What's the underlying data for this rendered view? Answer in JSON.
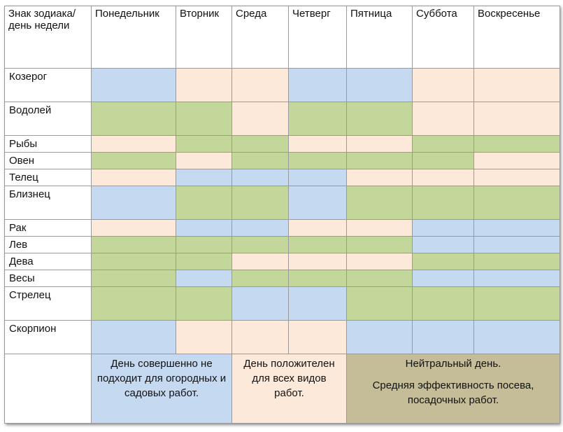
{
  "table": {
    "header": [
      "Знак зодиака/день недели",
      "Понедельник",
      "Вторник",
      "Среда",
      "Четверг",
      "Пятница",
      "Суббота",
      "Воскресенье"
    ],
    "rows": [
      {
        "sign": "Козерог",
        "cells": [
          "#c5d9f1",
          "#fde9d9",
          "#fde9d9",
          "#c5d9f1",
          "#c5d9f1",
          "#fde9d9",
          "#fde9d9"
        ]
      },
      {
        "sign": "Водолей",
        "cells": [
          "#c4d79b",
          "#c4d79b",
          "#fde9d9",
          "#c4d79b",
          "#c4d79b",
          "#fde9d9",
          "#fde9d9"
        ]
      },
      {
        "sign": "Рыбы",
        "cells": [
          "#fde9d9",
          "#c4d79b",
          "#c4d79b",
          "#fde9d9",
          "#fde9d9",
          "#c4d79b",
          "#c4d79b"
        ]
      },
      {
        "sign": "Овен",
        "cells": [
          "#c4d79b",
          "#fde9d9",
          "#c4d79b",
          "#c4d79b",
          "#c4d79b",
          "#c4d79b",
          "#fde9d9"
        ]
      },
      {
        "sign": "Телец",
        "cells": [
          "#fde9d9",
          "#c5d9f1",
          "#c5d9f1",
          "#c5d9f1",
          "#fde9d9",
          "#fde9d9",
          "#fde9d9"
        ]
      },
      {
        "sign": "Близнец",
        "cells": [
          "#c5d9f1",
          "#c4d79b",
          "#c4d79b",
          "#c5d9f1",
          "#c4d79b",
          "#c4d79b",
          "#c4d79b"
        ]
      },
      {
        "sign": "Рак",
        "cells": [
          "#fde9d9",
          "#c5d9f1",
          "#c5d9f1",
          "#fde9d9",
          "#fde9d9",
          "#c5d9f1",
          "#c5d9f1"
        ]
      },
      {
        "sign": "Лев",
        "cells": [
          "#c4d79b",
          "#c4d79b",
          "#c4d79b",
          "#c4d79b",
          "#c4d79b",
          "#c5d9f1",
          "#c5d9f1"
        ]
      },
      {
        "sign": "Дева",
        "cells": [
          "#c4d79b",
          "#c4d79b",
          "#fde9d9",
          "#fde9d9",
          "#fde9d9",
          "#c4d79b",
          "#c4d79b"
        ]
      },
      {
        "sign": "Весы",
        "cells": [
          "#c4d79b",
          "#c5d9f1",
          "#c4d79b",
          "#c4d79b",
          "#c4d79b",
          "#c5d9f1",
          "#c5d9f1"
        ]
      },
      {
        "sign": "Стрелец",
        "cells": [
          "#c4d79b",
          "#c4d79b",
          "#c5d9f1",
          "#c5d9f1",
          "#c4d79b",
          "#c4d79b",
          "#c4d79b"
        ]
      },
      {
        "sign": "Скорпион",
        "cells": [
          "#c5d9f1",
          "#fde9d9",
          "#fde9d9",
          "#fde9d9",
          "#c5d9f1",
          "#c5d9f1",
          "#c5d9f1"
        ]
      }
    ],
    "legend": [
      {
        "color": "#c5d9f1",
        "texts": [
          "День совершенно не подходит для огородных и садовых работ."
        ]
      },
      {
        "color": "#fde9d9",
        "texts": [
          "День положителен для всех видов работ."
        ]
      },
      {
        "color": "#c4bd97",
        "texts": [
          "Нейтральный день.",
          "Средняя эффективность посева, посадочных работ."
        ]
      }
    ]
  }
}
